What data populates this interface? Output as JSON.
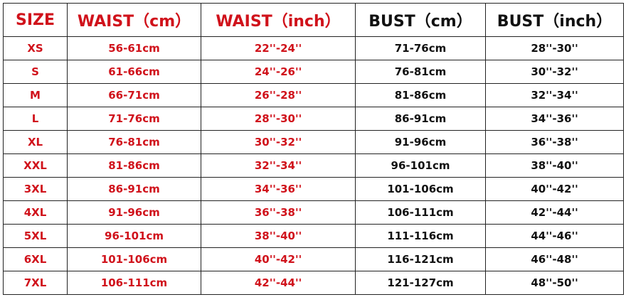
{
  "table": {
    "header": [
      "SIZE",
      "WAIST（cm）",
      "WAIST（inch）",
      "BUST（cm）",
      "BUST（inch）"
    ],
    "rows": [
      [
        "XS",
        "56-61cm",
        "22''-24''",
        "71-76cm",
        "28''-30''"
      ],
      [
        "S",
        "61-66cm",
        "24''-26''",
        "76-81cm",
        "30''-32''"
      ],
      [
        "M",
        "66-71cm",
        "26''-28''",
        "81-86cm",
        "32''-34''"
      ],
      [
        "L",
        "71-76cm",
        "28''-30''",
        "86-91cm",
        "34''-36''"
      ],
      [
        "XL",
        "76-81cm",
        "30''-32''",
        "91-96cm",
        "36''-38''"
      ],
      [
        "XXL",
        "81-86cm",
        "32''-34''",
        "96-101cm",
        "38''-40''"
      ],
      [
        "3XL",
        "86-91cm",
        "34''-36''",
        "101-106cm",
        "40''-42''"
      ],
      [
        "4XL",
        "91-96cm",
        "36''-38''",
        "106-111cm",
        "42''-44''"
      ],
      [
        "5XL",
        "96-101cm",
        "38''-40''",
        "111-116cm",
        "44''-46''"
      ],
      [
        "6XL",
        "101-106cm",
        "40''-42''",
        "116-121cm",
        "46''-48''"
      ],
      [
        "7XL",
        "106-111cm",
        "42''-44''",
        "121-127cm",
        "48''-50''"
      ]
    ]
  }
}
